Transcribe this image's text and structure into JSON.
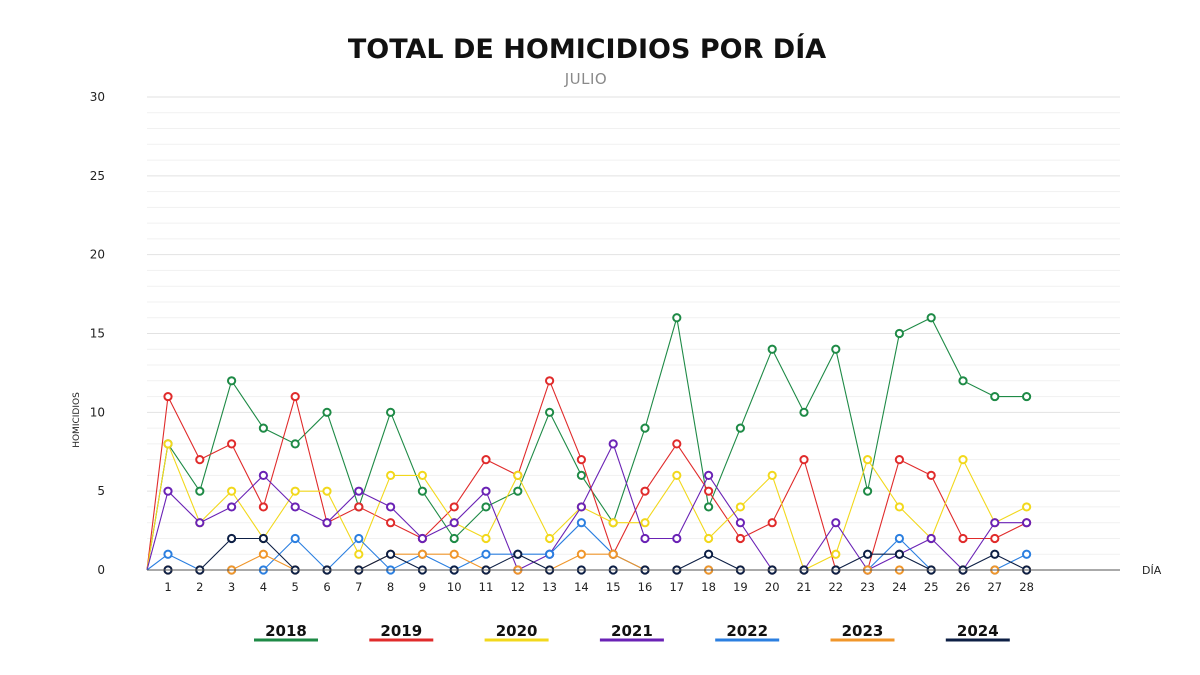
{
  "chart_data": {
    "type": "line",
    "title": "TOTAL DE HOMICIDIOS POR DÍA",
    "subtitle": "JULIO",
    "xlabel": "DÍA",
    "ylabel": "HOMICIDIOS",
    "ylim": [
      0,
      30
    ],
    "yticks": [
      0,
      5,
      10,
      15,
      20,
      25,
      30
    ],
    "grid": true,
    "legend_position": "bottom",
    "x": [
      1,
      2,
      3,
      4,
      5,
      6,
      7,
      8,
      9,
      10,
      11,
      12,
      13,
      14,
      15,
      16,
      17,
      18,
      19,
      20,
      21,
      22,
      23,
      24,
      25,
      26,
      27,
      28
    ],
    "series": [
      {
        "name": "2018",
        "color": "#1e8a46",
        "values": [
          8,
          5,
          12,
          9,
          8,
          10,
          4,
          10,
          5,
          2,
          4,
          5,
          10,
          6,
          3,
          9,
          16,
          4,
          9,
          14,
          10,
          14,
          5,
          15,
          16,
          12,
          11,
          11
        ]
      },
      {
        "name": "2019",
        "color": "#e02b2b",
        "values": [
          11,
          7,
          8,
          4,
          11,
          3,
          4,
          3,
          2,
          4,
          7,
          6,
          12,
          7,
          1,
          5,
          8,
          5,
          2,
          3,
          7,
          0,
          0,
          7,
          6,
          2,
          2,
          3
        ]
      },
      {
        "name": "2020",
        "color": "#f2d81c",
        "values": [
          8,
          3,
          5,
          2,
          5,
          5,
          1,
          6,
          6,
          3,
          2,
          6,
          2,
          4,
          3,
          3,
          6,
          2,
          4,
          6,
          0,
          1,
          7,
          4,
          2,
          7,
          3,
          4
        ]
      },
      {
        "name": "2021",
        "color": "#6a22b5",
        "values": [
          5,
          3,
          4,
          6,
          4,
          3,
          5,
          4,
          2,
          3,
          5,
          0,
          1,
          4,
          8,
          2,
          2,
          6,
          3,
          0,
          0,
          3,
          0,
          1,
          2,
          0,
          3,
          3
        ]
      },
      {
        "name": "2022",
        "color": "#2b7fe0",
        "values": [
          1,
          0,
          0,
          0,
          2,
          0,
          2,
          0,
          1,
          0,
          1,
          1,
          1,
          3,
          1,
          0,
          0,
          0,
          0,
          0,
          0,
          0,
          0,
          2,
          0,
          0,
          0,
          1
        ]
      },
      {
        "name": "2023",
        "color": "#f0962a",
        "values": [
          0,
          0,
          0,
          1,
          0,
          0,
          0,
          1,
          1,
          1,
          0,
          0,
          0,
          1,
          1,
          0,
          0,
          0,
          0,
          0,
          0,
          0,
          0,
          0,
          0,
          0,
          0,
          0
        ]
      },
      {
        "name": "2024",
        "color": "#0d1f45",
        "values": [
          0,
          0,
          2,
          2,
          0,
          0,
          0,
          1,
          0,
          0,
          0,
          1,
          0,
          0,
          0,
          0,
          0,
          1,
          0,
          0,
          0,
          0,
          1,
          1,
          0,
          0,
          1,
          0
        ]
      }
    ]
  }
}
